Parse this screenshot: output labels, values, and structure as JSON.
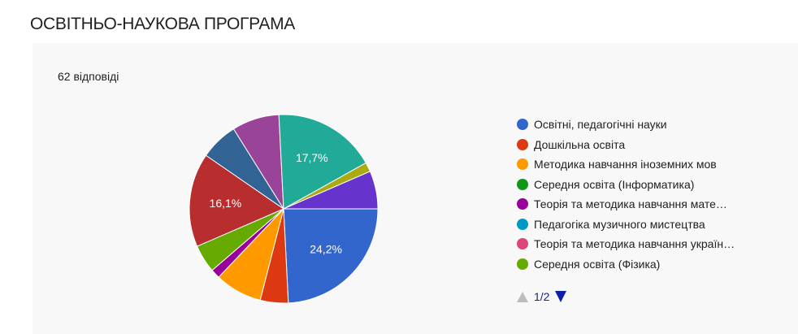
{
  "title": "ОСВІТНЬО-НАУКОВА ПРОГРАМА",
  "responses_label": "62 відповіді",
  "pager": {
    "label": "1/2"
  },
  "chart_data": {
    "type": "pie",
    "total_responses": 62,
    "slices": [
      {
        "name": "Освітні, педагогічні науки",
        "value": 24.2,
        "label": "24,2%",
        "color": "#3366cc"
      },
      {
        "name": "Дошкільна освіта",
        "value": 4.8,
        "label": "",
        "color": "#dc3912"
      },
      {
        "name": "Методика навчання іноземних мов",
        "value": 8.1,
        "label": "",
        "color": "#ff9900"
      },
      {
        "name": "Середня освіта (Інформатика)",
        "value": 0,
        "label": "",
        "color": "#109618"
      },
      {
        "name": "Теорія та методика навчання мате…",
        "value": 1.6,
        "label": "",
        "color": "#990099"
      },
      {
        "name": "Педагогіка музичного мистецтва",
        "value": 0,
        "label": "",
        "color": "#0099c6"
      },
      {
        "name": "Теорія та методика навчання украї…",
        "value": 0,
        "label": "",
        "color": "#dd4477"
      },
      {
        "name": "Середня освіта (Фізика)",
        "value": 4.8,
        "label": "",
        "color": "#66aa00"
      },
      {
        "name": "",
        "value": 16.1,
        "label": "16,1%",
        "color": "#b82e2e"
      },
      {
        "name": "",
        "value": 6.5,
        "label": "",
        "color": "#316395"
      },
      {
        "name": "",
        "value": 8.1,
        "label": "",
        "color": "#994499"
      },
      {
        "name": "",
        "value": 17.7,
        "label": "17,7%",
        "color": "#22aa99"
      },
      {
        "name": "",
        "value": 1.6,
        "label": "",
        "color": "#aaaa11"
      },
      {
        "name": "",
        "value": 6.5,
        "label": "",
        "color": "#6633cc"
      }
    ],
    "legend": [
      {
        "label": "Освітні, педагогічні науки",
        "color": "#3366cc"
      },
      {
        "label": "Дошкільна освіта",
        "color": "#dc3912"
      },
      {
        "label": "Методика навчання іноземних мов",
        "color": "#ff9900"
      },
      {
        "label": "Середня освіта (Інформатика)",
        "color": "#109618"
      },
      {
        "label": "Теорія та методика навчання мате…",
        "color": "#990099"
      },
      {
        "label": "Педагогіка музичного мистецтва",
        "color": "#0099c6"
      },
      {
        "label": "Теорія та методика навчання україн…",
        "color": "#dd4477"
      },
      {
        "label": "Середня освіта (Фізика)",
        "color": "#66aa00"
      }
    ],
    "legend_position": "right"
  }
}
